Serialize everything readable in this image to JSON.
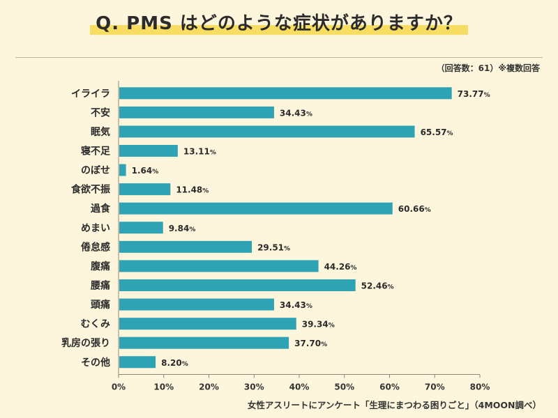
{
  "header": {
    "title": "Q. PMS はどのような症状がありますか？",
    "note": "（回答数：61）※複数回答"
  },
  "footer": {
    "source": "女性アスリートにアンケート「生理にまつわる困りごと」（4MOON調べ）"
  },
  "colors": {
    "bar": "#2ea3b3",
    "highlight": "#f7dd62",
    "background": "#fdf6dc",
    "grid": "#bdb7a5"
  },
  "chart_data": {
    "type": "bar",
    "orientation": "horizontal",
    "categories": [
      "イライラ",
      "不安",
      "眠気",
      "寝不足",
      "のぼせ",
      "食欲不振",
      "過食",
      "めまい",
      "倦怠感",
      "腹痛",
      "腰痛",
      "頭痛",
      "むくみ",
      "乳房の張り",
      "その他"
    ],
    "values": [
      73.77,
      34.43,
      65.57,
      13.11,
      1.64,
      11.48,
      60.66,
      9.84,
      29.51,
      44.26,
      52.46,
      34.43,
      39.34,
      37.7,
      8.2
    ],
    "value_labels": [
      "73.77",
      "34.43",
      "65.57",
      "13.11",
      "1.64",
      "11.48",
      "60.66",
      "9.84",
      "29.51",
      "44.26",
      "52.46",
      "34.43",
      "39.34",
      "37.70",
      "8.20"
    ],
    "value_suffix": "%",
    "x_ticks": [
      "0%",
      "10%",
      "20%",
      "30%",
      "40%",
      "50%",
      "60%",
      "70%",
      "80%"
    ],
    "xlim": [
      0,
      80
    ],
    "grid": false
  }
}
